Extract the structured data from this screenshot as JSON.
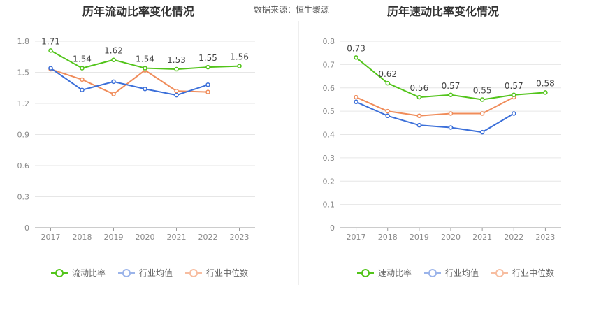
{
  "source": "数据来源：恒生聚源",
  "charts": [
    {
      "title": "历年流动比率变化情况",
      "categories": [
        "2017",
        "2018",
        "2019",
        "2020",
        "2021",
        "2022",
        "2023"
      ],
      "ymax": 1.8,
      "yticks": [
        "0",
        "0.3",
        "0.6",
        "0.9",
        "1.2",
        "1.5",
        "1.8"
      ],
      "series": [
        {
          "name": "流动比率",
          "color": "#52c41a",
          "values": [
            1.71,
            1.54,
            1.62,
            1.54,
            1.53,
            1.55,
            1.56
          ],
          "labels": [
            "1.71",
            "1.54",
            "1.62",
            "1.54",
            "1.53",
            "1.55",
            "1.56"
          ]
        },
        {
          "name": "行业均值",
          "color": "#3b6fd9",
          "values": [
            1.54,
            1.33,
            1.41,
            1.34,
            1.28,
            1.38,
            null
          ]
        },
        {
          "name": "行业中位数",
          "color": "#f08c5a",
          "values": [
            1.53,
            1.43,
            1.29,
            1.52,
            1.32,
            1.31,
            null
          ]
        }
      ],
      "legend": [
        "流动比率",
        "行业均值",
        "行业中位数"
      ]
    },
    {
      "title": "历年速动比率变化情况",
      "categories": [
        "2017",
        "2018",
        "2019",
        "2020",
        "2021",
        "2022",
        "2023"
      ],
      "ymax": 0.8,
      "yticks": [
        "0",
        "0.1",
        "0.2",
        "0.3",
        "0.4",
        "0.5",
        "0.6",
        "0.7",
        "0.8"
      ],
      "series": [
        {
          "name": "速动比率",
          "color": "#52c41a",
          "values": [
            0.73,
            0.62,
            0.56,
            0.57,
            0.55,
            0.57,
            0.58
          ],
          "labels": [
            "0.73",
            "0.62",
            "0.56",
            "0.57",
            "0.55",
            "0.57",
            "0.58"
          ]
        },
        {
          "name": "行业均值",
          "color": "#3b6fd9",
          "values": [
            0.54,
            0.48,
            0.44,
            0.43,
            0.41,
            0.49,
            null
          ]
        },
        {
          "name": "行业中位数",
          "color": "#f08c5a",
          "values": [
            0.56,
            0.5,
            0.48,
            0.49,
            0.49,
            0.56,
            null
          ]
        }
      ],
      "legend": [
        "速动比率",
        "行业均值",
        "行业中位数"
      ]
    }
  ],
  "chart_data": [
    {
      "type": "line",
      "title": "历年流动比率变化情况",
      "categories": [
        "2017",
        "2018",
        "2019",
        "2020",
        "2021",
        "2022",
        "2023"
      ],
      "series": [
        {
          "name": "流动比率",
          "values": [
            1.71,
            1.54,
            1.62,
            1.54,
            1.53,
            1.55,
            1.56
          ]
        },
        {
          "name": "行业均值",
          "values": [
            1.54,
            1.33,
            1.41,
            1.34,
            1.28,
            1.38,
            null
          ]
        },
        {
          "name": "行业中位数",
          "values": [
            1.53,
            1.43,
            1.29,
            1.52,
            1.32,
            1.31,
            null
          ]
        }
      ],
      "ylim": [
        0,
        1.8
      ],
      "legend": "bottom"
    },
    {
      "type": "line",
      "title": "历年速动比率变化情况",
      "categories": [
        "2017",
        "2018",
        "2019",
        "2020",
        "2021",
        "2022",
        "2023"
      ],
      "series": [
        {
          "name": "速动比率",
          "values": [
            0.73,
            0.62,
            0.56,
            0.57,
            0.55,
            0.57,
            0.58
          ]
        },
        {
          "name": "行业均值",
          "values": [
            0.54,
            0.48,
            0.44,
            0.43,
            0.41,
            0.49,
            null
          ]
        },
        {
          "name": "行业中位数",
          "values": [
            0.56,
            0.5,
            0.48,
            0.49,
            0.49,
            0.56,
            null
          ]
        }
      ],
      "ylim": [
        0,
        0.8
      ],
      "legend": "bottom"
    }
  ]
}
